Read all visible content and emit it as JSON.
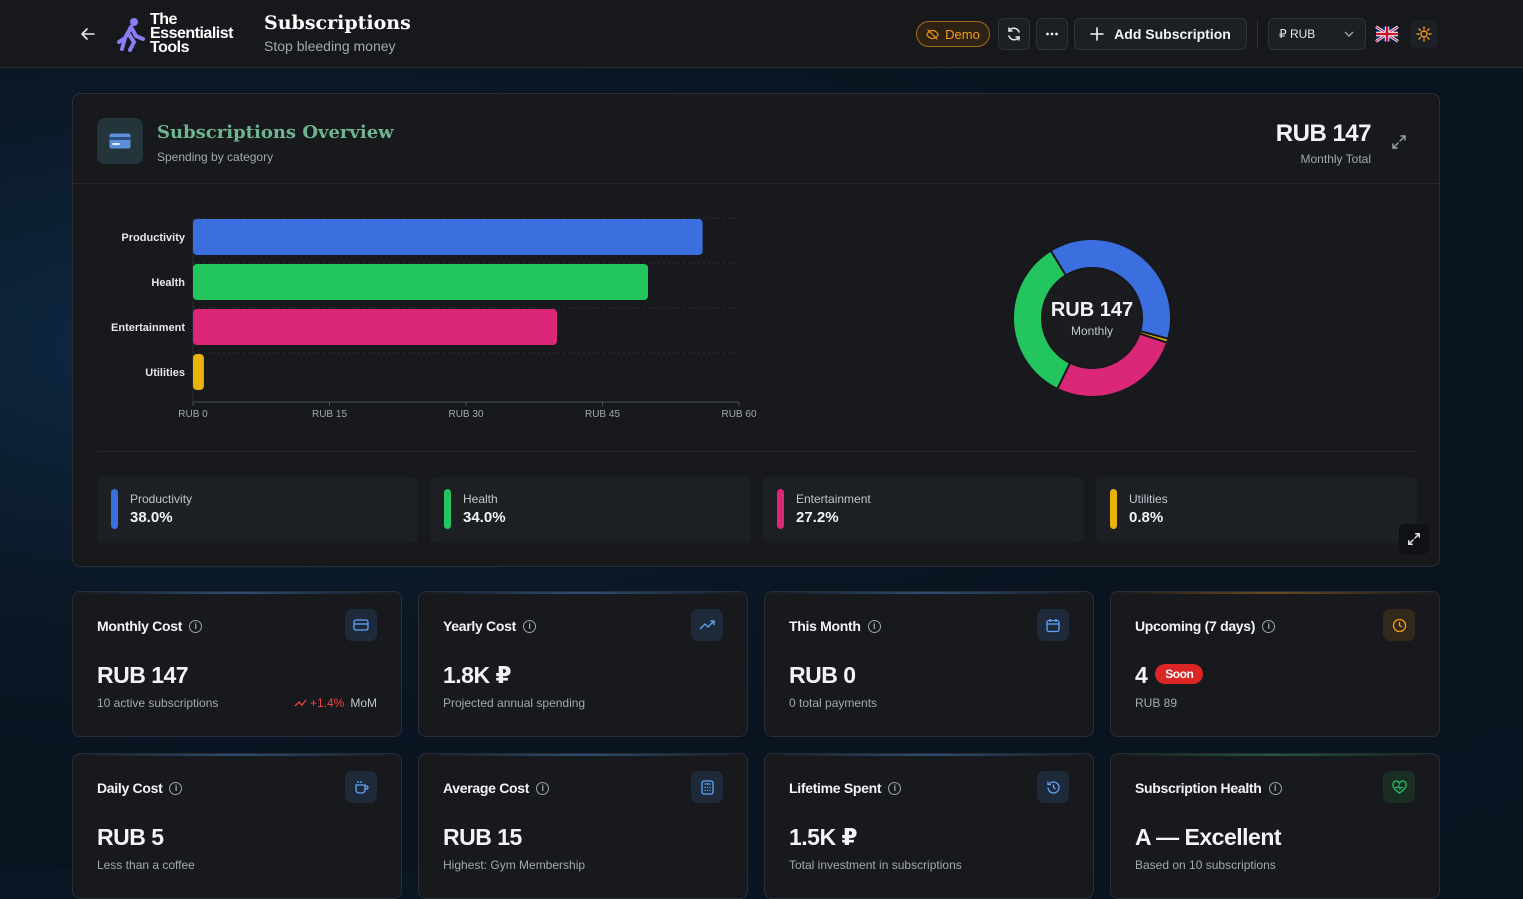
{
  "header": {
    "app_title": "Subscriptions",
    "app_subtitle": "Stop bleeding money",
    "logo_text": "The Essentialist Tools",
    "demo_label": "Demo",
    "add_button_label": "Add Subscription",
    "currency_label": "₽ RUB"
  },
  "overview": {
    "title": "Subscriptions Overview",
    "subtitle": "Spending by category",
    "total_value": "RUB 147",
    "total_label": "Monthly Total",
    "donut_value": "RUB 147",
    "donut_label": "Monthly"
  },
  "chart_data": {
    "type": "bar",
    "orientation": "horizontal",
    "categories": [
      "Productivity",
      "Health",
      "Entertainment",
      "Utilities"
    ],
    "values": [
      56,
      50,
      40,
      1.2
    ],
    "colors": [
      "#3b6fe0",
      "#22c55e",
      "#db2777",
      "#eab308"
    ],
    "xlim": [
      0,
      60
    ],
    "xticks": [
      "RUB 0",
      "RUB 15",
      "RUB 30",
      "RUB 45",
      "RUB 60"
    ],
    "xtick_values": [
      0,
      15,
      30,
      45,
      60
    ]
  },
  "donut_data": {
    "type": "pie",
    "labels": [
      "Productivity",
      "Utilities",
      "Entertainment",
      "Health"
    ],
    "values": [
      38.0,
      0.8,
      27.2,
      34.0
    ],
    "colors": [
      "#3b6fe0",
      "#eab308",
      "#db2777",
      "#22c55e"
    ]
  },
  "legend": [
    {
      "name": "Productivity",
      "pct": "38.0%",
      "color": "#3b6fe0"
    },
    {
      "name": "Health",
      "pct": "34.0%",
      "color": "#22c55e"
    },
    {
      "name": "Entertainment",
      "pct": "27.2%",
      "color": "#db2777"
    },
    {
      "name": "Utilities",
      "pct": "0.8%",
      "color": "#eab308"
    }
  ],
  "stats": {
    "monthly": {
      "label": "Monthly Cost",
      "value": "RUB 147",
      "desc": "10 active subscriptions",
      "trend": "+1.4%",
      "trend_suffix": "MoM"
    },
    "yearly": {
      "label": "Yearly Cost",
      "value": "1.8K ₽",
      "desc": "Projected annual spending"
    },
    "this_month": {
      "label": "This Month",
      "value": "RUB 0",
      "desc": "0 total payments"
    },
    "upcoming": {
      "label": "Upcoming (7 days)",
      "value": "4",
      "badge": "Soon",
      "desc": "RUB 89"
    },
    "daily": {
      "label": "Daily Cost",
      "value": "RUB 5",
      "desc": "Less than a coffee"
    },
    "average": {
      "label": "Average Cost",
      "value": "RUB 15",
      "desc": "Highest: Gym Membership"
    },
    "lifetime": {
      "label": "Lifetime Spent",
      "value": "1.5K ₽",
      "desc": "Total investment in subscriptions"
    },
    "health": {
      "label": "Subscription Health",
      "value": "A — Excellent",
      "desc": "Based on 10 subscriptions"
    }
  }
}
